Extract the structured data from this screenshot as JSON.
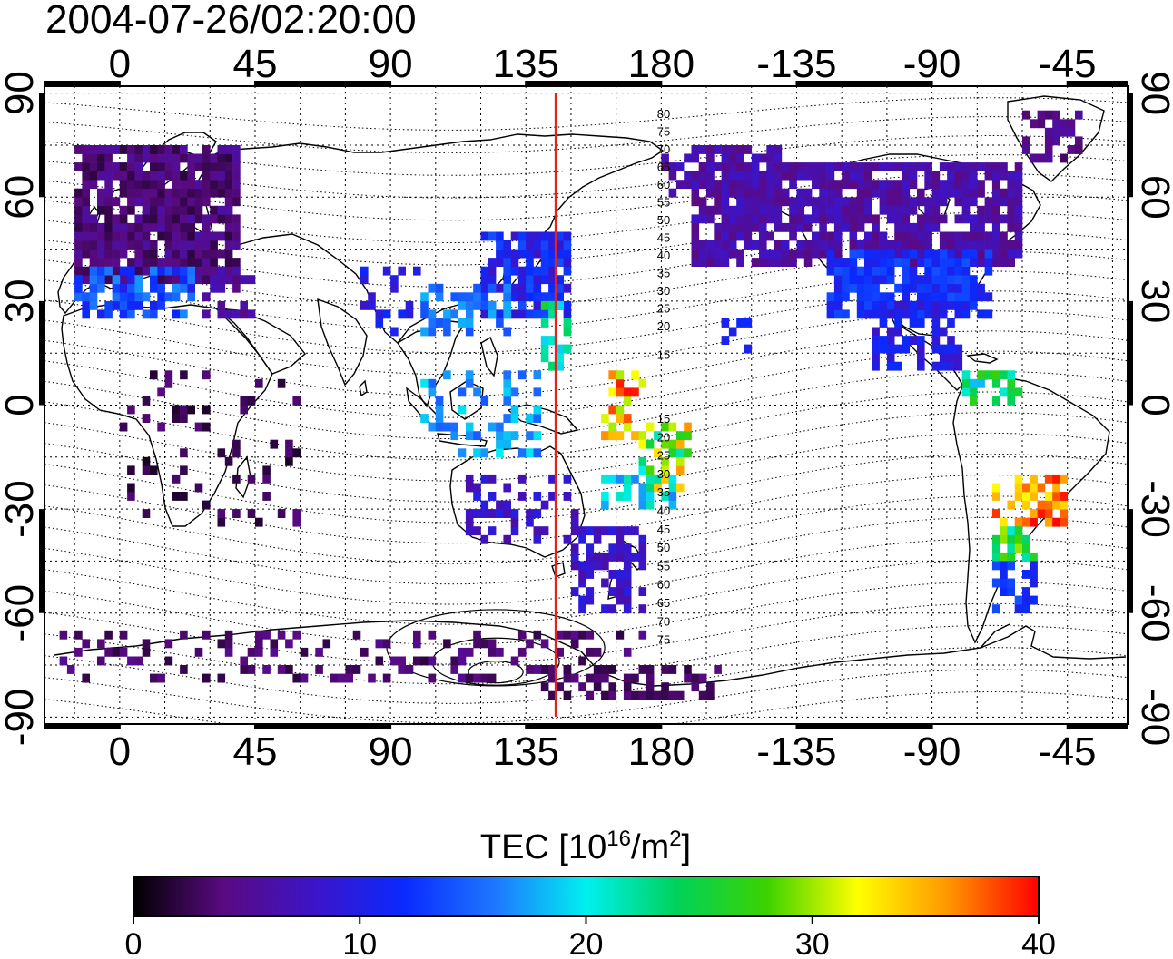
{
  "title": "2004-07-26/02:20:00",
  "axes": {
    "top_lon_labels": [
      "0",
      "45",
      "90",
      "135",
      "180",
      "-135",
      "-90",
      "-45"
    ],
    "bottom_lon_labels": [
      "0",
      "45",
      "90",
      "135",
      "180",
      "-135",
      "-90",
      "-45"
    ],
    "lat_labels": [
      "90",
      "60",
      "30",
      "0",
      "-30",
      "-60",
      "-90"
    ],
    "lon_range": [
      -25,
      335
    ],
    "lat_range": [
      -92,
      92
    ]
  },
  "meridian_marker": {
    "lon": 145,
    "color": "#e0231e"
  },
  "contour_labels": {
    "north_upper": [
      "80",
      "75",
      "70",
      "65",
      "60",
      "55",
      "50",
      "45",
      "40",
      "35",
      "30",
      "25",
      "20",
      "15"
    ],
    "south": [
      "15",
      "20",
      "25",
      "30",
      "35",
      "40",
      "45",
      "50",
      "55",
      "60",
      "65",
      "70",
      "75"
    ]
  },
  "colorbar": {
    "title_prefix": "TEC  [10",
    "title_exp": "16",
    "title_mid": "/m",
    "title_exp2": "2",
    "title_suffix": "]",
    "ticks": [
      "0",
      "10",
      "20",
      "30",
      "40"
    ],
    "min": 0,
    "max": 40,
    "colors": [
      "#000000",
      "#5a0a82",
      "#3c14c8",
      "#0a2aff",
      "#1e78ff",
      "#00f0f0",
      "#00d25a",
      "#3cd200",
      "#ffff00",
      "#ff9600",
      "#ff0000"
    ]
  }
}
